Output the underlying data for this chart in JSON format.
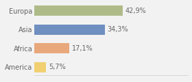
{
  "categories": [
    "Europa",
    "Asia",
    "Africa",
    "America"
  ],
  "values": [
    42.9,
    34.3,
    17.1,
    5.7
  ],
  "labels": [
    "42,9%",
    "34,3%",
    "17,1%",
    "5,7%"
  ],
  "bar_colors": [
    "#aebb88",
    "#6e8fbf",
    "#e8a87c",
    "#f0d070"
  ],
  "background_color": "#f2f2f2",
  "xlim": [
    0,
    75
  ],
  "label_fontsize": 7,
  "category_fontsize": 7,
  "bar_height": 0.55
}
